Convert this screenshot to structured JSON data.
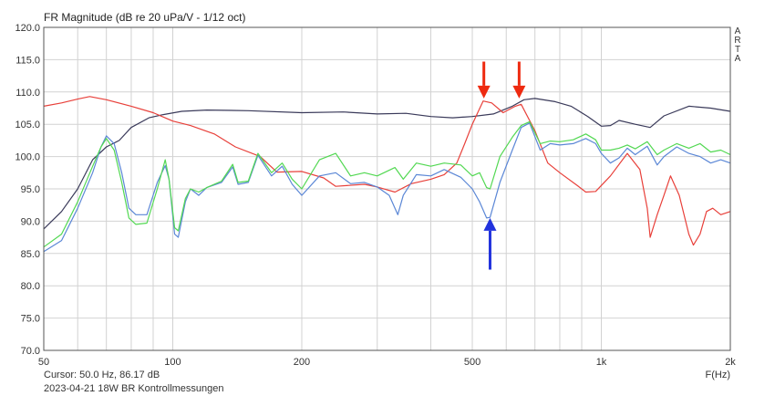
{
  "title": "FR Magnitude (dB re 20 uPa/V - 1/12 oct)",
  "cursor_readout": "Cursor: 50.0 Hz, 86.17 dB",
  "measurement_label": "2023-04-21 18W BR Kontrollmessungen",
  "x_unit": "F(Hz)",
  "arta_mark": "ARTA",
  "colors": {
    "black": "#3a3a5a",
    "red": "#e8403a",
    "blue": "#5b87d6",
    "green": "#52d852",
    "red_arrow": "#ee2a10",
    "blue_arrow": "#2233dd",
    "grid": "#d2d2d2"
  },
  "chart_data": {
    "type": "line",
    "title": "FR Magnitude (dB re 20 uPa/V - 1/12 oct)",
    "xlabel": "F(Hz)",
    "ylabel": "",
    "xscale": "log",
    "xlim": [
      50,
      2000
    ],
    "ylim": [
      70,
      120
    ],
    "x_ticks": [
      50,
      100,
      200,
      500,
      1000,
      2000
    ],
    "x_tick_labels": [
      "50",
      "100",
      "200",
      "500",
      "1k",
      "2k"
    ],
    "y_ticks": [
      70,
      75,
      80,
      85,
      90,
      95,
      100,
      105,
      110,
      115,
      120
    ],
    "y_tick_labels": [
      "70.0",
      "75.0",
      "80.0",
      "85.0",
      "90.0",
      "95.0",
      "100.0",
      "105.0",
      "110.0",
      "115.0",
      "120.0"
    ],
    "grid": true,
    "series": [
      {
        "color": "#3a3a5a",
        "points": [
          [
            50,
            88.8
          ],
          [
            55,
            91.5
          ],
          [
            60,
            95
          ],
          [
            65,
            99.5
          ],
          [
            70,
            101.5
          ],
          [
            75,
            102.5
          ],
          [
            80,
            104.5
          ],
          [
            88,
            106
          ],
          [
            95,
            106.5
          ],
          [
            105,
            107
          ],
          [
            120,
            107.2
          ],
          [
            150,
            107.1
          ],
          [
            200,
            106.8
          ],
          [
            250,
            106.9
          ],
          [
            300,
            106.6
          ],
          [
            350,
            106.7
          ],
          [
            400,
            106.2
          ],
          [
            450,
            106
          ],
          [
            500,
            106.2
          ],
          [
            560,
            106.6
          ],
          [
            620,
            107.8
          ],
          [
            660,
            108.8
          ],
          [
            700,
            109
          ],
          [
            780,
            108.5
          ],
          [
            850,
            107.8
          ],
          [
            930,
            106.2
          ],
          [
            1000,
            104.7
          ],
          [
            1050,
            104.8
          ],
          [
            1100,
            105.6
          ],
          [
            1200,
            105
          ],
          [
            1300,
            104.5
          ],
          [
            1400,
            106.3
          ],
          [
            1600,
            107.8
          ],
          [
            1800,
            107.5
          ],
          [
            2000,
            107
          ]
        ]
      },
      {
        "color": "#e8403a",
        "points": [
          [
            50,
            107.8
          ],
          [
            55,
            108.3
          ],
          [
            60,
            108.9
          ],
          [
            64,
            109.3
          ],
          [
            70,
            108.8
          ],
          [
            80,
            107.8
          ],
          [
            90,
            106.8
          ],
          [
            100,
            105.5
          ],
          [
            110,
            104.8
          ],
          [
            125,
            103.5
          ],
          [
            140,
            101.5
          ],
          [
            160,
            100
          ],
          [
            175,
            97.6
          ],
          [
            200,
            97.7
          ],
          [
            225,
            96.7
          ],
          [
            240,
            95.4
          ],
          [
            280,
            95.7
          ],
          [
            300,
            95.3
          ],
          [
            330,
            94.5
          ],
          [
            360,
            95.8
          ],
          [
            400,
            96.5
          ],
          [
            430,
            97.2
          ],
          [
            460,
            99
          ],
          [
            480,
            102
          ],
          [
            500,
            105
          ],
          [
            530,
            108.6
          ],
          [
            555,
            108.3
          ],
          [
            590,
            106.8
          ],
          [
            630,
            107.8
          ],
          [
            650,
            108.1
          ],
          [
            700,
            104
          ],
          [
            750,
            99
          ],
          [
            800,
            97.5
          ],
          [
            880,
            95.5
          ],
          [
            920,
            94.5
          ],
          [
            970,
            94.6
          ],
          [
            1050,
            97
          ],
          [
            1150,
            100.5
          ],
          [
            1230,
            98
          ],
          [
            1280,
            92
          ],
          [
            1300,
            87.5
          ],
          [
            1350,
            91
          ],
          [
            1400,
            94
          ],
          [
            1450,
            97
          ],
          [
            1520,
            94
          ],
          [
            1600,
            88
          ],
          [
            1640,
            86.3
          ],
          [
            1700,
            88
          ],
          [
            1760,
            91.5
          ],
          [
            1820,
            92
          ],
          [
            1900,
            91
          ],
          [
            2000,
            91.5
          ]
        ]
      },
      {
        "color": "#5b87d6",
        "points": [
          [
            50,
            85.3
          ],
          [
            55,
            87
          ],
          [
            60,
            92
          ],
          [
            65,
            97.5
          ],
          [
            68,
            101.5
          ],
          [
            70,
            103.2
          ],
          [
            73,
            102
          ],
          [
            76,
            97.5
          ],
          [
            79,
            92
          ],
          [
            82,
            91
          ],
          [
            87,
            91
          ],
          [
            92,
            96
          ],
          [
            96,
            98.6
          ],
          [
            98,
            96.5
          ],
          [
            101,
            88
          ],
          [
            103,
            87.5
          ],
          [
            107,
            93
          ],
          [
            110,
            95
          ],
          [
            115,
            94
          ],
          [
            120,
            95.2
          ],
          [
            130,
            96
          ],
          [
            138,
            98.4
          ],
          [
            142,
            95.7
          ],
          [
            150,
            96
          ],
          [
            158,
            100.2
          ],
          [
            170,
            97
          ],
          [
            180,
            98.5
          ],
          [
            190,
            95.7
          ],
          [
            200,
            94
          ],
          [
            220,
            97
          ],
          [
            240,
            97.5
          ],
          [
            260,
            95.8
          ],
          [
            280,
            96
          ],
          [
            300,
            95.3
          ],
          [
            320,
            94
          ],
          [
            335,
            91
          ],
          [
            345,
            94
          ],
          [
            370,
            97.2
          ],
          [
            400,
            97
          ],
          [
            430,
            98
          ],
          [
            470,
            96.8
          ],
          [
            500,
            95
          ],
          [
            520,
            93
          ],
          [
            540,
            90.5
          ],
          [
            550,
            90.6
          ],
          [
            580,
            96
          ],
          [
            620,
            101
          ],
          [
            650,
            104.5
          ],
          [
            680,
            105.2
          ],
          [
            720,
            101
          ],
          [
            760,
            102
          ],
          [
            800,
            101.8
          ],
          [
            860,
            102
          ],
          [
            920,
            102.8
          ],
          [
            970,
            102
          ],
          [
            1000,
            100.5
          ],
          [
            1050,
            99
          ],
          [
            1100,
            99.8
          ],
          [
            1150,
            101.3
          ],
          [
            1200,
            100.3
          ],
          [
            1280,
            101.6
          ],
          [
            1350,
            98.7
          ],
          [
            1400,
            100
          ],
          [
            1500,
            101.5
          ],
          [
            1600,
            100.5
          ],
          [
            1700,
            100
          ],
          [
            1800,
            99
          ],
          [
            1900,
            99.5
          ],
          [
            2000,
            99
          ]
        ]
      },
      {
        "color": "#52d852",
        "points": [
          [
            50,
            86
          ],
          [
            55,
            88
          ],
          [
            60,
            93
          ],
          [
            65,
            98.5
          ],
          [
            68,
            101.5
          ],
          [
            70,
            102.8
          ],
          [
            73,
            101
          ],
          [
            76,
            96
          ],
          [
            79,
            90.5
          ],
          [
            82,
            89.5
          ],
          [
            87,
            89.7
          ],
          [
            92,
            95
          ],
          [
            96,
            99.5
          ],
          [
            98,
            96.5
          ],
          [
            101,
            89
          ],
          [
            103,
            88.5
          ],
          [
            107,
            93.5
          ],
          [
            110,
            95
          ],
          [
            115,
            94.5
          ],
          [
            120,
            95.2
          ],
          [
            130,
            96.2
          ],
          [
            138,
            98.8
          ],
          [
            142,
            96
          ],
          [
            150,
            96.2
          ],
          [
            158,
            100.5
          ],
          [
            170,
            97.5
          ],
          [
            180,
            99
          ],
          [
            190,
            96.5
          ],
          [
            200,
            95
          ],
          [
            220,
            99.5
          ],
          [
            240,
            100.5
          ],
          [
            260,
            97
          ],
          [
            280,
            97.5
          ],
          [
            300,
            97
          ],
          [
            330,
            98.3
          ],
          [
            345,
            96.5
          ],
          [
            370,
            99
          ],
          [
            400,
            98.5
          ],
          [
            430,
            99
          ],
          [
            470,
            98.7
          ],
          [
            500,
            97
          ],
          [
            520,
            97.5
          ],
          [
            540,
            95.2
          ],
          [
            550,
            95
          ],
          [
            580,
            100
          ],
          [
            620,
            103
          ],
          [
            650,
            104.8
          ],
          [
            680,
            105.4
          ],
          [
            720,
            102
          ],
          [
            760,
            102.4
          ],
          [
            800,
            102.3
          ],
          [
            860,
            102.6
          ],
          [
            920,
            103.5
          ],
          [
            970,
            102.6
          ],
          [
            1000,
            101
          ],
          [
            1050,
            101
          ],
          [
            1100,
            101.3
          ],
          [
            1150,
            101.8
          ],
          [
            1200,
            101.2
          ],
          [
            1280,
            102.3
          ],
          [
            1350,
            100.3
          ],
          [
            1400,
            101
          ],
          [
            1500,
            102
          ],
          [
            1600,
            101.3
          ],
          [
            1700,
            102
          ],
          [
            1800,
            100.7
          ],
          [
            1900,
            101
          ],
          [
            2000,
            100.3
          ]
        ]
      }
    ],
    "annotations": [
      {
        "type": "arrow",
        "direction": "down",
        "color": "#ee2a10",
        "x": 532,
        "y_tip": 109,
        "y_tail": 114.7
      },
      {
        "type": "arrow",
        "direction": "down",
        "color": "#ee2a10",
        "x": 643,
        "y_tip": 109,
        "y_tail": 114.7
      },
      {
        "type": "arrow",
        "direction": "up",
        "color": "#2233dd",
        "x": 550,
        "y_tip": 90.5,
        "y_tail": 82.5
      }
    ]
  }
}
